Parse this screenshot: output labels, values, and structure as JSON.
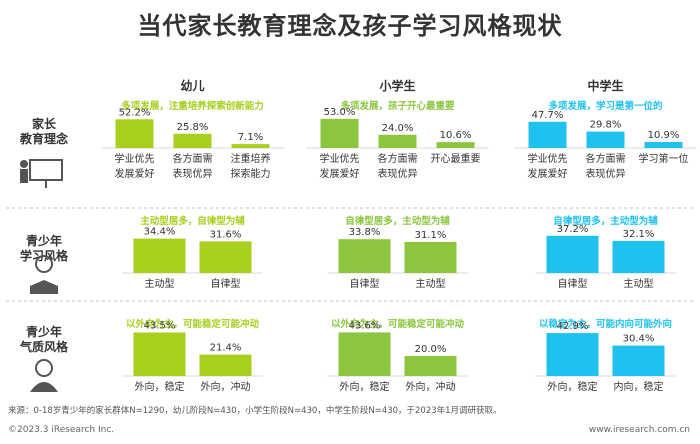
{
  "title": "当代家长教育理念及孩子学习风格现状",
  "stages": [
    "幼儿",
    "小学生",
    "中学生"
  ],
  "colors": {
    "stage1": "#a7cf1e",
    "stage2": "#8cc63f",
    "stage3": "#1fc2ef",
    "icon": "#555555",
    "divider": "#bfbfbf"
  },
  "rows": [
    {
      "label_line1": "家长",
      "label_line2": "教育理念",
      "icon": "teacher-at-board-icon"
    },
    {
      "label_line1": "青少年",
      "label_line2": "学习风格",
      "icon": "student-reading-icon"
    },
    {
      "label_line1": "青少年",
      "label_line2": "气质风格",
      "icon": "person-silhouette-icon"
    }
  ],
  "chart_data": [
    {
      "type": "bar",
      "row": 0,
      "stage": "幼儿",
      "subtitle": "多项发展，注重培养探索创新能力",
      "categories": [
        [
          "学业优先",
          "发展爱好"
        ],
        [
          "各方面需",
          "表现优异"
        ],
        [
          "注重培养",
          "探索能力"
        ]
      ],
      "labels": [
        "52.2%",
        "25.8%",
        "7.1%"
      ],
      "values": [
        52.2,
        25.8,
        7.1
      ]
    },
    {
      "type": "bar",
      "row": 0,
      "stage": "小学生",
      "subtitle": "多项发展，孩子开心最重要",
      "categories": [
        [
          "学业优先",
          "发展爱好"
        ],
        [
          "各方面需",
          "表现优异"
        ],
        [
          "开心最重要",
          ""
        ]
      ],
      "labels": [
        "53.0%",
        "24.0%",
        "10.6%"
      ],
      "values": [
        53.0,
        24.0,
        10.6
      ]
    },
    {
      "type": "bar",
      "row": 0,
      "stage": "中学生",
      "subtitle": "多项发展，学习是第一位的",
      "categories": [
        [
          "学业优先",
          "发展爱好"
        ],
        [
          "各方面需",
          "表现优异"
        ],
        [
          "学习第一位",
          ""
        ]
      ],
      "labels": [
        "47.7%",
        "29.8%",
        "10.9%"
      ],
      "values": [
        47.7,
        29.8,
        10.9
      ]
    },
    {
      "type": "bar",
      "row": 1,
      "stage": "幼儿",
      "subtitle": "主动型居多，自律型为辅",
      "categories": [
        [
          "主动型"
        ],
        [
          "自律型"
        ]
      ],
      "labels": [
        "34.4%",
        "31.6%"
      ],
      "values": [
        34.4,
        31.6
      ]
    },
    {
      "type": "bar",
      "row": 1,
      "stage": "小学生",
      "subtitle": "自律型居多，主动型为辅",
      "categories": [
        [
          "自律型"
        ],
        [
          "主动型"
        ]
      ],
      "labels": [
        "33.8%",
        "31.1%"
      ],
      "values": [
        33.8,
        31.1
      ]
    },
    {
      "type": "bar",
      "row": 1,
      "stage": "中学生",
      "subtitle": "自律型居多，主动型为辅",
      "categories": [
        [
          "自律型"
        ],
        [
          "主动型"
        ]
      ],
      "labels": [
        "37.2%",
        "32.1%"
      ],
      "values": [
        37.2,
        32.1
      ]
    },
    {
      "type": "bar",
      "row": 2,
      "stage": "幼儿",
      "subtitle": "以外向为主，可能稳定可能冲动",
      "categories": [
        [
          "外向，稳定"
        ],
        [
          "外向，冲动"
        ]
      ],
      "labels": [
        "43.5%",
        "21.4%"
      ],
      "values": [
        43.5,
        21.4
      ]
    },
    {
      "type": "bar",
      "row": 2,
      "stage": "小学生",
      "subtitle": "以外向为主，可能稳定可能冲动",
      "categories": [
        [
          "外向，稳定"
        ],
        [
          "外向，冲动"
        ]
      ],
      "labels": [
        "43.6%",
        "20.0%"
      ],
      "values": [
        43.6,
        20.0
      ]
    },
    {
      "type": "bar",
      "row": 2,
      "stage": "中学生",
      "subtitle": "以稳定为主，可能内向可能外向",
      "categories": [
        [
          "外向，稳定"
        ],
        [
          "内向，稳定"
        ]
      ],
      "labels": [
        "42.9%",
        "30.4%"
      ],
      "values": [
        42.9,
        30.4
      ]
    }
  ],
  "source": "来源：0-18岁青少年的家长群体N=1290，幼儿阶段N=430，小学生阶段N=430，中学生阶段N=430，于2023年1月调研获取。",
  "copyright": "©2023.3 iResearch Inc.",
  "website": "www.iresearch.com.cn"
}
